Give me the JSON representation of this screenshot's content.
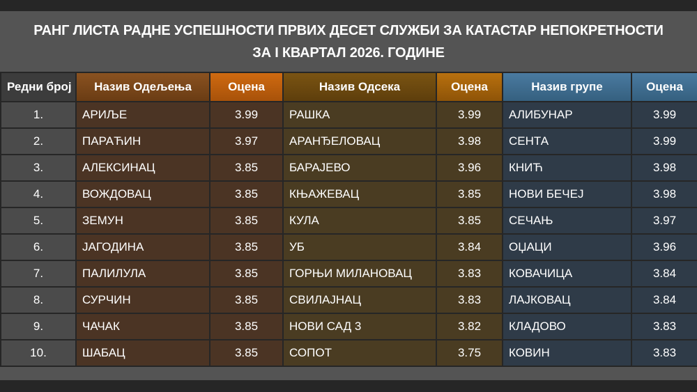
{
  "header": {
    "title_lines": [
      "РАНГ ЛИСТА РАДНЕ УСПЕШНОСТИ ПРВИХ ДЕСЕТ СЛУЖБИ ЗА КАТАСТАР НЕПОКРЕТНОСТИ",
      "ЗА I КВАРТАЛ 2026. ГОДИНЕ"
    ]
  },
  "table": {
    "columns": [
      "Редни број",
      "Назив Одељења",
      "Оцена",
      "Назив Одсека",
      "Оцена",
      "Назив групе",
      "Оцена"
    ],
    "rows": [
      [
        "1.",
        "АРИЉЕ",
        "3.99",
        "РАШКА",
        "3.99",
        "АЛИБУНАР",
        "3.99"
      ],
      [
        "2.",
        "ПАРАЋИН",
        "3.97",
        "АРАНЂЕЛОВАЦ",
        "3.98",
        "СЕНТА",
        "3.99"
      ],
      [
        "3.",
        "АЛЕКСИНАЦ",
        "3.85",
        "БАРАЈЕВО",
        "3.96",
        "КНИЋ",
        "3.98"
      ],
      [
        "4.",
        "ВОЖДОВАЦ",
        "3.85",
        "КЊАЖЕВАЦ",
        "3.85",
        "НОВИ БЕЧЕЈ",
        "3.98"
      ],
      [
        "5.",
        "ЗЕМУН",
        "3.85",
        "КУЛА",
        "3.85",
        "СЕЧАЊ",
        "3.97"
      ],
      [
        "6.",
        "ЈАГОДИНА",
        "3.85",
        "УБ",
        "3.84",
        "ОЏАЦИ",
        "3.96"
      ],
      [
        "7.",
        "ПАЛИЛУЛА",
        "3.85",
        "ГОРЊИ МИЛАНОВАЦ",
        "3.83",
        "КОВАЧИЦА",
        "3.84"
      ],
      [
        "8.",
        "СУРЧИН",
        "3.85",
        "СВИЛАЈНАЦ",
        "3.83",
        "ЛАЈКОВАЦ",
        "3.84"
      ],
      [
        "9.",
        "ЧАЧАК",
        "3.85",
        "НОВИ САД 3",
        "3.82",
        "КЛАДОВО",
        "3.83"
      ],
      [
        "10.",
        "ШАБАЦ",
        "3.85",
        "СОПОТ",
        "3.75",
        "КОВИН",
        "3.83"
      ]
    ]
  }
}
